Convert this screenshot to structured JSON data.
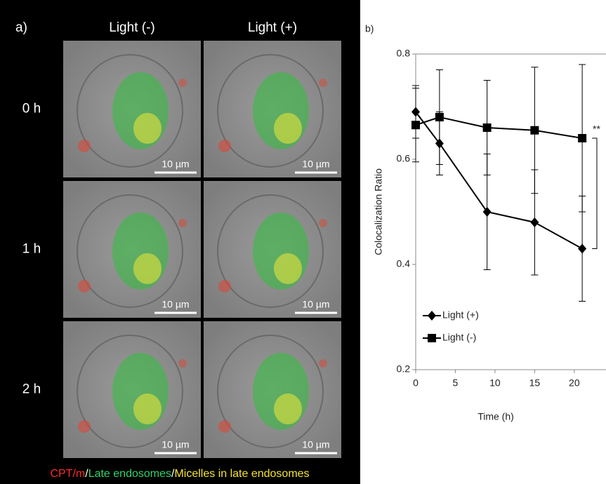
{
  "panel_a": {
    "label": "a)",
    "columns": [
      "Light (-)",
      "Light (+)"
    ],
    "rows": [
      "0 h",
      "1 h",
      "2 h"
    ],
    "scale_bars": [
      "10 µm",
      "10 µm",
      "10 µm",
      "10 µm",
      "10 µm",
      "10 µm"
    ],
    "caption": [
      "CPT/m",
      "/",
      "Late endosomes",
      "/",
      "Micelles in late endosomes"
    ]
  },
  "chart_data": {
    "type": "line",
    "panel_label": "b)",
    "x_label": "Time (h)",
    "y_label": "Colocalization Ratio",
    "x": [
      0,
      3,
      9,
      15,
      21
    ],
    "series": [
      {
        "name": "Light (+)",
        "color": "#000000",
        "marker": "diamond",
        "values": [
          0.69,
          0.63,
          0.5,
          0.48,
          0.43
        ],
        "errors": [
          0.05,
          0.06,
          0.11,
          0.1,
          0.1
        ]
      },
      {
        "name": "Light (-)",
        "color": "#000000",
        "marker": "square",
        "values": [
          0.665,
          0.68,
          0.66,
          0.655,
          0.64
        ],
        "errors": [
          0.07,
          0.09,
          0.09,
          0.12,
          0.14
        ]
      }
    ],
    "xlim": [
      0,
      24
    ],
    "ylim": [
      0.2,
      0.8
    ],
    "xticks": [
      0,
      5,
      10,
      15,
      20
    ],
    "yticks": [
      0.2,
      0.4,
      0.6,
      0.8
    ],
    "annotations": [
      "**"
    ],
    "legend": "lower left"
  }
}
